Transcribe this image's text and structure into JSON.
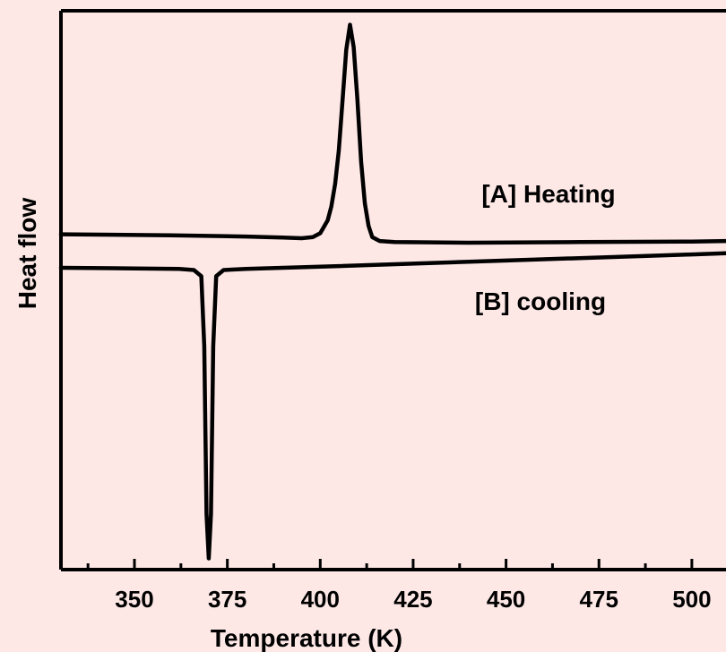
{
  "chart_data": {
    "type": "line",
    "title": "",
    "xlabel": "Temperature (K)",
    "ylabel": "Heat flow",
    "xlim": [
      330,
      510
    ],
    "ylim": [
      0,
      100
    ],
    "x_ticks": [
      350,
      375,
      400,
      425,
      450,
      475,
      500
    ],
    "x_tick_labels": [
      "350",
      "375",
      "400",
      "425",
      "450",
      "475",
      "500"
    ],
    "x_minor_ticks": [
      337.5,
      362.5,
      387.5,
      412.5,
      437.5,
      462.5,
      487.5
    ],
    "y_ticks_shown": false,
    "grid": false,
    "annotations": [
      {
        "text": "[A] Heating",
        "x": 458,
        "y": 67.5
      },
      {
        "text": "[B] cooling",
        "x": 456,
        "y": 48.5
      }
    ],
    "series": [
      {
        "label": "[A] Heating",
        "x": [
          330,
          360,
          380,
          390,
          395,
          398,
          400,
          402,
          403,
          404,
          405,
          406,
          407,
          408,
          409,
          410,
          411,
          412,
          413,
          414,
          416,
          420,
          440,
          470,
          500,
          510
        ],
        "y": [
          60.0,
          59.8,
          59.6,
          59.4,
          59.3,
          59.5,
          60.2,
          62.5,
          65.0,
          69.0,
          75.0,
          84.0,
          93.0,
          97.5,
          93.5,
          84.0,
          73.0,
          65.5,
          61.5,
          59.5,
          58.8,
          58.6,
          58.5,
          58.6,
          58.7,
          58.8
        ]
      },
      {
        "label": "[B] cooling",
        "x": [
          330,
          350,
          362,
          366,
          368,
          368.8,
          369.4,
          370.0,
          370.6,
          371.2,
          372,
          374,
          380,
          400,
          450,
          500,
          510
        ],
        "y": [
          54.0,
          53.9,
          53.8,
          53.6,
          52.5,
          40.0,
          10.0,
          2.0,
          10.0,
          40.0,
          52.5,
          53.6,
          53.8,
          54.2,
          55.3,
          56.4,
          56.6
        ]
      }
    ]
  }
}
